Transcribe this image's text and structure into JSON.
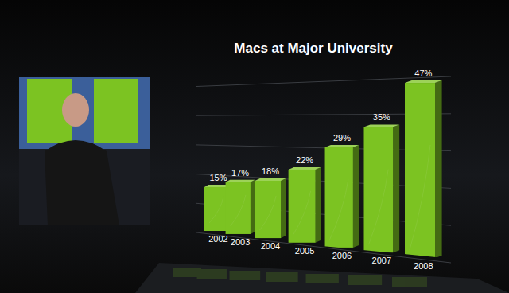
{
  "chart_data": {
    "type": "bar",
    "title": "Macs at Major University",
    "categories": [
      "2002",
      "2003",
      "2004",
      "2005",
      "2006",
      "2007",
      "2008"
    ],
    "values": [
      15,
      17,
      18,
      22,
      29,
      35,
      47
    ],
    "value_labels": [
      "15%",
      "17%",
      "18%",
      "22%",
      "29%",
      "35%",
      "47%"
    ],
    "color": "#7cc322",
    "ylim": [
      0,
      50
    ],
    "yticks": [
      0,
      10,
      20,
      30,
      40,
      50
    ],
    "grid": true,
    "data_labels": true,
    "tick_labels": "x"
  }
}
